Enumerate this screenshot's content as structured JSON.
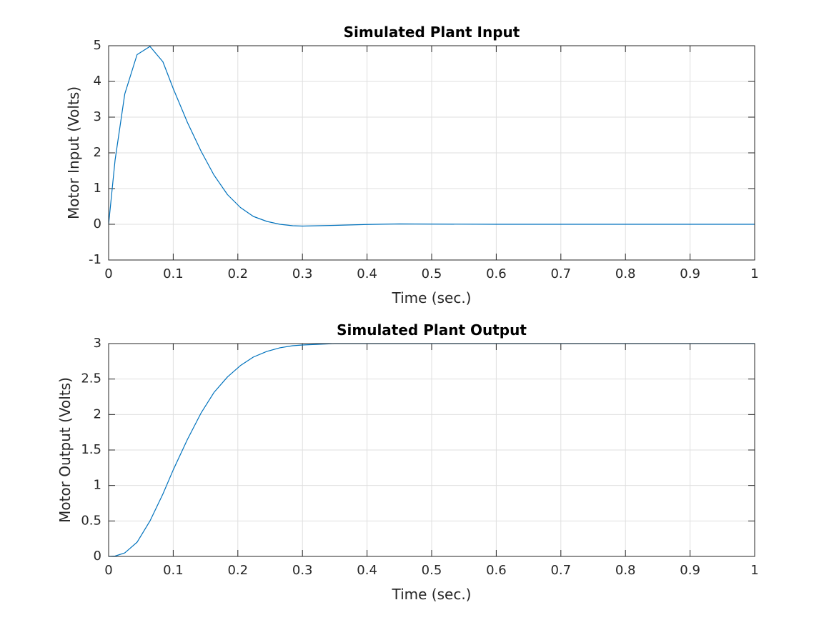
{
  "colors": {
    "series": "#0072bd",
    "axis": "#262626",
    "grid": "#dfdfdf",
    "background": "#ffffff"
  },
  "chart_data": [
    {
      "type": "line",
      "title": "Simulated Plant Input",
      "xlabel": "Time (sec.)",
      "ylabel": "Motor Input (Volts)",
      "xlim": [
        0,
        1
      ],
      "ylim": [
        -1,
        5
      ],
      "grid": true,
      "xticks": [
        0,
        0.1,
        0.2,
        0.3,
        0.4,
        0.5,
        0.6,
        0.7,
        0.8,
        0.9,
        1
      ],
      "xtick_labels": [
        "0",
        "0.1",
        "0.2",
        "0.3",
        "0.4",
        "0.5",
        "0.6",
        "0.7",
        "0.8",
        "0.9",
        "1"
      ],
      "yticks": [
        -1,
        0,
        1,
        2,
        3,
        4,
        5
      ],
      "ytick_labels": [
        "-1",
        "0",
        "1",
        "2",
        "3",
        "4",
        "5"
      ],
      "series": [
        {
          "x": [
            0,
            0.01,
            0.025,
            0.044,
            0.064,
            0.084,
            0.1,
            0.122,
            0.143,
            0.163,
            0.184,
            0.204,
            0.224,
            0.245,
            0.265,
            0.285,
            0.3,
            0.35,
            0.4,
            0.45,
            0.5,
            0.6,
            0.7,
            0.8,
            0.9,
            1.0
          ],
          "y": [
            0,
            1.8,
            3.65,
            4.75,
            4.98,
            4.55,
            3.8,
            2.85,
            2.05,
            1.38,
            0.83,
            0.47,
            0.22,
            0.08,
            0.0,
            -0.04,
            -0.05,
            -0.03,
            -0.005,
            0.01,
            0.005,
            0,
            0,
            0,
            0,
            0
          ]
        }
      ]
    },
    {
      "type": "line",
      "title": "Simulated Plant Output",
      "xlabel": "Time (sec.)",
      "ylabel": "Motor Output (Volts)",
      "xlim": [
        0,
        1
      ],
      "ylim": [
        0,
        3
      ],
      "grid": true,
      "xticks": [
        0,
        0.1,
        0.2,
        0.3,
        0.4,
        0.5,
        0.6,
        0.7,
        0.8,
        0.9,
        1
      ],
      "xtick_labels": [
        "0",
        "0.1",
        "0.2",
        "0.3",
        "0.4",
        "0.5",
        "0.6",
        "0.7",
        "0.8",
        "0.9",
        "1"
      ],
      "yticks": [
        0,
        0.5,
        1,
        1.5,
        2,
        2.5,
        3
      ],
      "ytick_labels": [
        "0",
        "0.5",
        "1",
        "1.5",
        "2",
        "2.5",
        "3"
      ],
      "series": [
        {
          "x": [
            0,
            0.01,
            0.025,
            0.044,
            0.064,
            0.084,
            0.1,
            0.122,
            0.143,
            0.163,
            0.184,
            0.204,
            0.224,
            0.245,
            0.265,
            0.285,
            0.3,
            0.35,
            0.4,
            0.5,
            0.6,
            0.7,
            0.8,
            0.9,
            1.0
          ],
          "y": [
            0,
            0.005,
            0.05,
            0.2,
            0.5,
            0.88,
            1.22,
            1.65,
            2.02,
            2.31,
            2.53,
            2.69,
            2.81,
            2.89,
            2.94,
            2.97,
            2.98,
            3.0,
            3.0,
            3.0,
            3.0,
            3.0,
            3.0,
            3.0,
            3.0
          ]
        }
      ]
    }
  ]
}
